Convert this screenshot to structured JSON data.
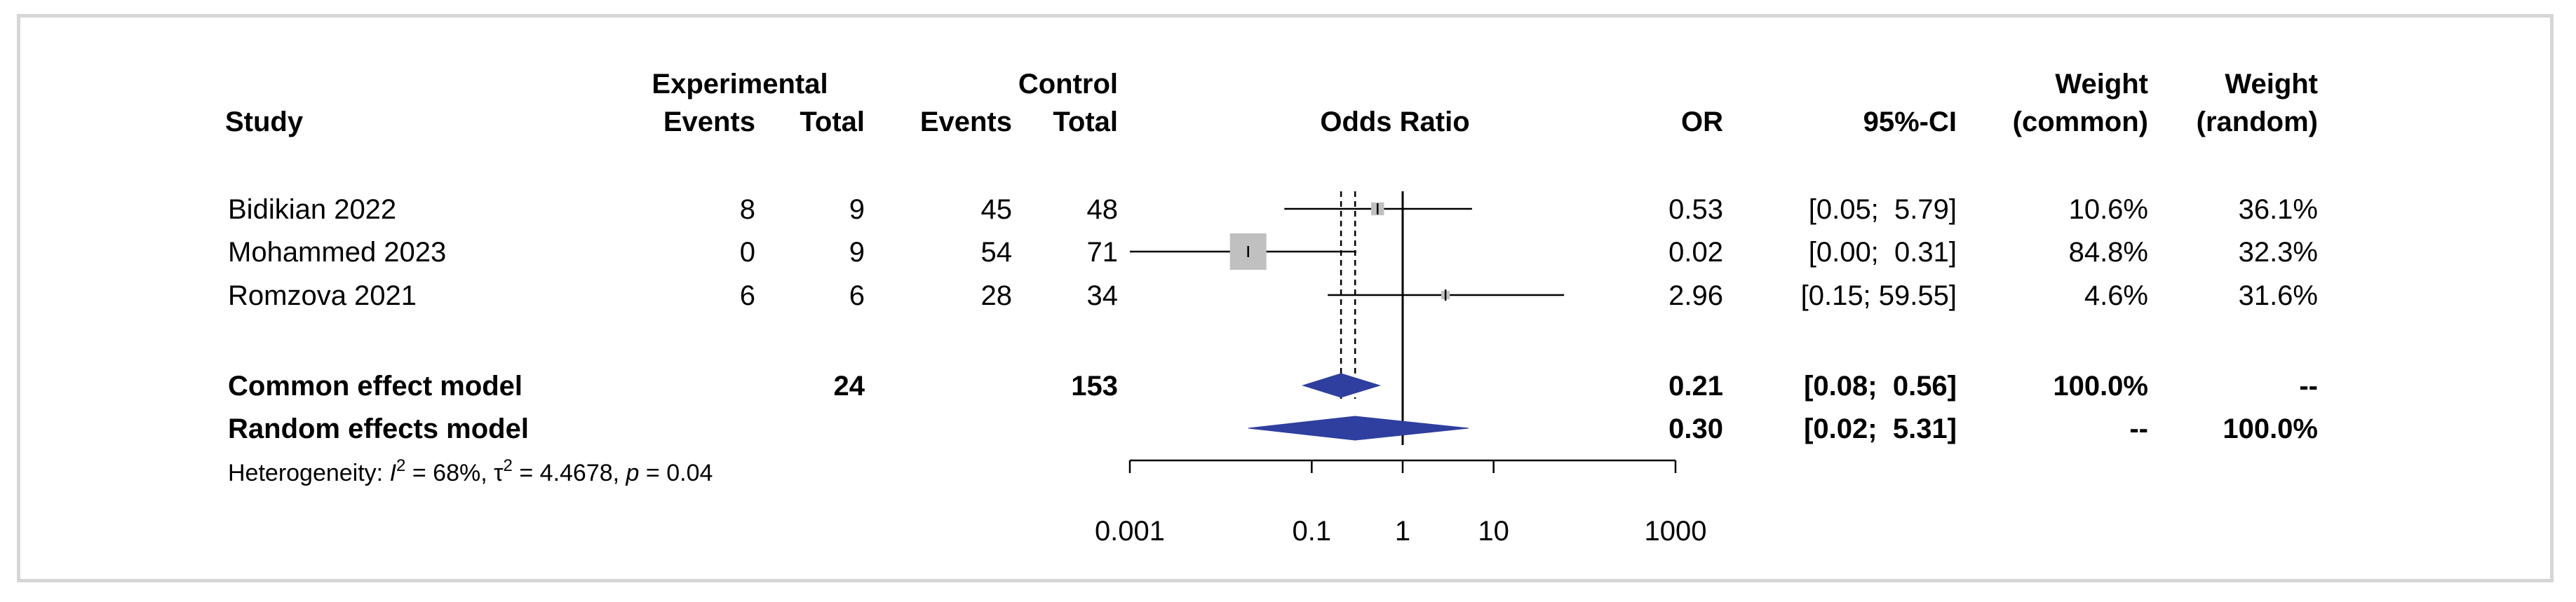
{
  "chart_data": {
    "type": "forest",
    "columns": {
      "study": "Study",
      "experimental": "Experimental",
      "control": "Control",
      "events": "Events",
      "total": "Total",
      "odds_ratio": "Odds Ratio",
      "or": "OR",
      "ci": "95%-CI",
      "weight": "Weight",
      "weight_common": "(common)",
      "weight_random": "(random)"
    },
    "studies": [
      {
        "name": "Bidikian 2022",
        "exp_events": "8",
        "exp_total": "9",
        "ctrl_events": "45",
        "ctrl_total": "48",
        "or_text": "0.53",
        "ci_text": "[0.05;  5.79]",
        "w_common": "10.6%",
        "w_random": "36.1%",
        "or": 0.53,
        "lower": 0.05,
        "upper": 5.79,
        "weight": 10.6
      },
      {
        "name": "Mohammed 2023",
        "exp_events": "0",
        "exp_total": "9",
        "ctrl_events": "54",
        "ctrl_total": "71",
        "or_text": "0.02",
        "ci_text": "[0.00;  0.31]",
        "w_common": "84.8%",
        "w_random": "32.3%",
        "or": 0.02,
        "lower": 0.0004,
        "upper": 0.31,
        "weight": 84.8
      },
      {
        "name": "Romzova 2021",
        "exp_events": "6",
        "exp_total": "6",
        "ctrl_events": "28",
        "ctrl_total": "34",
        "or_text": "2.96",
        "ci_text": "[0.15; 59.55]",
        "w_common": "4.6%",
        "w_random": "31.6%",
        "or": 2.96,
        "lower": 0.15,
        "upper": 59.55,
        "weight": 4.6
      }
    ],
    "pooled": [
      {
        "name": "Common effect model",
        "exp_total": "24",
        "ctrl_total": "153",
        "or_text": "0.21",
        "ci_text": "[0.08;  0.56]",
        "w_common": "100.0%",
        "w_random": "--",
        "or": 0.21,
        "lower": 0.08,
        "upper": 0.56
      },
      {
        "name": "Random effects model",
        "exp_total": "",
        "ctrl_total": "",
        "or_text": "0.30",
        "ci_text": "[0.02;  5.31]",
        "w_common": "--",
        "w_random": "100.0%",
        "or": 0.3,
        "lower": 0.02,
        "upper": 5.31
      }
    ],
    "heterogeneity": {
      "prefix": "Heterogeneity: ",
      "i_sym": "I",
      "sup2": "2",
      "i_val": " = 68%, ",
      "tau": "τ",
      "tau_val": " = 4.4678, ",
      "p": "p",
      "p_val": " = 0.04"
    },
    "x_ticks": [
      {
        "value": 0.001,
        "label": "0.001"
      },
      {
        "value": 0.1,
        "label": "0.1"
      },
      {
        "value": 1,
        "label": "1"
      },
      {
        "value": 10,
        "label": "10"
      },
      {
        "value": 1000,
        "label": "1000"
      }
    ],
    "scale": "log",
    "xlim": [
      0.001,
      1000
    ],
    "null_line": 1,
    "colors": {
      "diamond": "#2f3f9f",
      "square": "#c0c0c0",
      "text": "#000000"
    }
  }
}
